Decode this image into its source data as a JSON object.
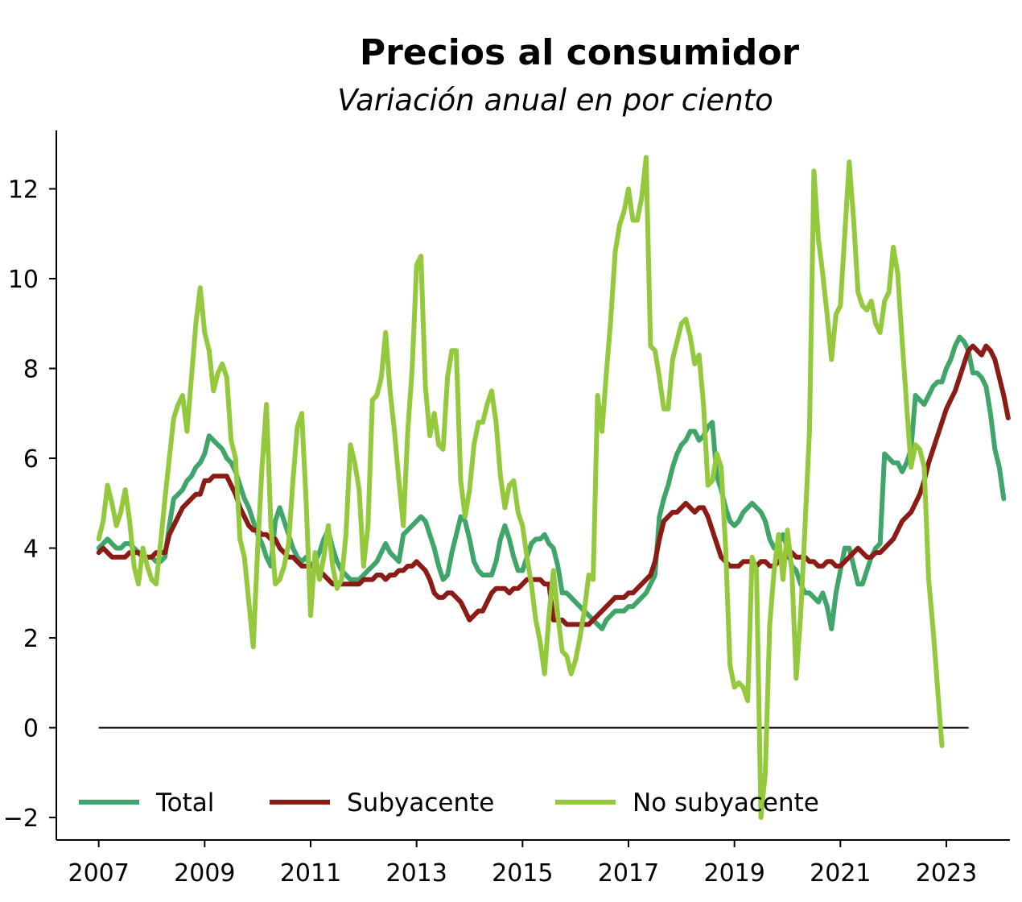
{
  "chart_data": {
    "type": "line",
    "title": "Precios al consumidor",
    "subtitle": "Variación anual en por ciento",
    "xlabel": "",
    "ylabel": "",
    "xlim": [
      2006.2,
      2024.2
    ],
    "ylim": [
      -2.5,
      13.3
    ],
    "x_ticks": [
      2007,
      2009,
      2011,
      2013,
      2015,
      2017,
      2019,
      2021,
      2023
    ],
    "x_tick_labels": [
      "2007",
      "2009",
      "2011",
      "2013",
      "2015",
      "2017",
      "2019",
      "2021",
      "2023"
    ],
    "y_ticks": [
      -2,
      0,
      2,
      4,
      6,
      8,
      10,
      12
    ],
    "y_tick_labels": [
      "−2",
      "0",
      "2",
      "4",
      "6",
      "8",
      "10",
      "12"
    ],
    "zero_line": {
      "y": 0,
      "x_start": 2007.0,
      "x_end": 2023.42
    },
    "grid": false,
    "legend_placement": "bottom-left",
    "x_start": 2007.0,
    "x_step": 0.08333,
    "series": [
      {
        "name": "Total",
        "color": "#3fa56a",
        "values": [
          4.0,
          4.1,
          4.2,
          4.1,
          4.0,
          4.0,
          4.1,
          4.1,
          4.0,
          3.9,
          3.8,
          3.8,
          3.8,
          3.7,
          3.7,
          3.8,
          4.5,
          5.1,
          5.2,
          5.3,
          5.5,
          5.6,
          5.8,
          5.9,
          6.1,
          6.5,
          6.4,
          6.3,
          6.2,
          6.0,
          5.9,
          5.7,
          5.4,
          5.1,
          4.9,
          4.6,
          4.3,
          4.1,
          3.8,
          3.6,
          4.6,
          4.9,
          4.6,
          4.3,
          4.0,
          3.8,
          3.7,
          3.8,
          3.6,
          3.7,
          3.9,
          4.2,
          4.4,
          4.0,
          3.7,
          3.5,
          3.4,
          3.3,
          3.3,
          3.3,
          3.4,
          3.5,
          3.6,
          3.7,
          3.9,
          4.1,
          3.9,
          3.8,
          3.7,
          4.3,
          4.4,
          4.5,
          4.6,
          4.7,
          4.6,
          4.3,
          4.0,
          3.6,
          3.3,
          3.4,
          3.9,
          4.3,
          4.7,
          4.6,
          4.2,
          3.7,
          3.5,
          3.4,
          3.4,
          3.4,
          3.7,
          4.2,
          4.5,
          4.2,
          3.8,
          3.5,
          3.5,
          3.8,
          4.1,
          4.2,
          4.2,
          4.3,
          4.1,
          4.0,
          3.6,
          3.0,
          3.0,
          2.9,
          2.8,
          2.7,
          2.6,
          2.5,
          2.4,
          2.3,
          2.2,
          2.4,
          2.5,
          2.6,
          2.6,
          2.6,
          2.7,
          2.7,
          2.8,
          2.9,
          3.0,
          3.2,
          3.4,
          4.7,
          5.1,
          5.4,
          5.8,
          6.1,
          6.3,
          6.4,
          6.6,
          6.6,
          6.4,
          6.5,
          6.7,
          6.8,
          5.6,
          5.3,
          4.9,
          4.6,
          4.5,
          4.6,
          4.8,
          4.9,
          5.0,
          4.9,
          4.8,
          4.6,
          4.2,
          4.0,
          4.1,
          4.3,
          4.0,
          3.6,
          3.5,
          3.2,
          3.0,
          3.0,
          2.9,
          2.8,
          3.0,
          2.7,
          2.2,
          3.0,
          3.5,
          4.0,
          4.0,
          3.6,
          3.2,
          3.2,
          3.5,
          3.8,
          4.0,
          4.1,
          6.1,
          6.0,
          5.9,
          5.9,
          5.7,
          5.9,
          6.2,
          7.4,
          7.3,
          7.2,
          7.4,
          7.6,
          7.7,
          7.7,
          8.0,
          8.2,
          8.5,
          8.7,
          8.6,
          8.4,
          7.9,
          7.9,
          7.8,
          7.6,
          7.0,
          6.2,
          5.8,
          5.1
        ]
      },
      {
        "name": "Subyacente",
        "color": "#8b1c15",
        "values": [
          3.9,
          4.0,
          3.9,
          3.8,
          3.8,
          3.8,
          3.8,
          3.9,
          3.9,
          3.9,
          3.8,
          3.8,
          3.8,
          3.9,
          3.9,
          3.9,
          4.3,
          4.5,
          4.7,
          4.9,
          5.0,
          5.1,
          5.2,
          5.2,
          5.5,
          5.5,
          5.6,
          5.6,
          5.6,
          5.6,
          5.4,
          5.2,
          4.9,
          4.7,
          4.5,
          4.4,
          4.4,
          4.3,
          4.3,
          4.2,
          4.2,
          4.0,
          3.9,
          3.8,
          3.8,
          3.7,
          3.6,
          3.6,
          3.6,
          3.6,
          3.5,
          3.4,
          3.3,
          3.2,
          3.2,
          3.2,
          3.2,
          3.2,
          3.2,
          3.2,
          3.3,
          3.3,
          3.3,
          3.4,
          3.4,
          3.3,
          3.4,
          3.4,
          3.5,
          3.5,
          3.6,
          3.6,
          3.7,
          3.6,
          3.5,
          3.3,
          3.0,
          2.9,
          2.9,
          3.0,
          3.0,
          2.9,
          2.8,
          2.6,
          2.4,
          2.5,
          2.6,
          2.6,
          2.8,
          3.0,
          3.1,
          3.1,
          3.1,
          3.0,
          3.1,
          3.1,
          3.2,
          3.3,
          3.3,
          3.3,
          3.3,
          3.2,
          3.2,
          2.4,
          2.4,
          2.4,
          2.3,
          2.3,
          2.3,
          2.3,
          2.3,
          2.3,
          2.4,
          2.5,
          2.6,
          2.7,
          2.8,
          2.9,
          2.9,
          2.9,
          3.0,
          3.0,
          3.1,
          3.2,
          3.3,
          3.4,
          3.7,
          4.2,
          4.6,
          4.7,
          4.8,
          4.8,
          4.9,
          5.0,
          4.9,
          4.8,
          4.9,
          4.9,
          4.7,
          4.4,
          4.1,
          3.8,
          3.7,
          3.6,
          3.6,
          3.6,
          3.7,
          3.7,
          3.7,
          3.6,
          3.7,
          3.7,
          3.6,
          3.6,
          3.7,
          3.8,
          3.8,
          3.9,
          3.8,
          3.8,
          3.8,
          3.7,
          3.7,
          3.6,
          3.6,
          3.7,
          3.7,
          3.6,
          3.6,
          3.7,
          3.8,
          3.9,
          4.0,
          3.9,
          3.8,
          3.8,
          3.9,
          3.9,
          4.0,
          4.1,
          4.2,
          4.4,
          4.6,
          4.7,
          4.8,
          5.0,
          5.2,
          5.5,
          5.9,
          6.2,
          6.5,
          6.8,
          7.1,
          7.3,
          7.5,
          7.8,
          8.1,
          8.4,
          8.5,
          8.4,
          8.3,
          8.5,
          8.4,
          8.2,
          7.8,
          7.4,
          6.9
        ]
      },
      {
        "name": "No subyacente",
        "color": "#94c93d",
        "values": [
          4.2,
          4.6,
          5.4,
          5.0,
          4.5,
          4.8,
          5.3,
          4.6,
          3.6,
          3.2,
          4.0,
          3.6,
          3.3,
          3.2,
          4.1,
          5.1,
          6.0,
          6.9,
          7.2,
          7.4,
          6.6,
          7.8,
          9.0,
          9.8,
          8.8,
          8.4,
          7.5,
          7.9,
          8.1,
          7.8,
          6.4,
          6.0,
          4.2,
          3.8,
          2.8,
          1.8,
          4.0,
          5.8,
          7.2,
          4.5,
          3.2,
          3.3,
          3.6,
          4.1,
          5.5,
          6.7,
          7.0,
          5.0,
          2.5,
          3.9,
          3.3,
          3.8,
          4.5,
          3.6,
          3.1,
          3.3,
          4.3,
          6.3,
          5.9,
          5.3,
          3.6,
          4.5,
          7.3,
          7.4,
          7.8,
          8.8,
          7.5,
          6.6,
          5.5,
          4.5,
          6.6,
          8.0,
          10.3,
          10.5,
          7.6,
          6.5,
          7.0,
          6.3,
          6.2,
          7.8,
          8.4,
          8.4,
          5.5,
          4.7,
          5.3,
          6.3,
          6.8,
          6.8,
          7.2,
          7.5,
          6.8,
          5.6,
          4.9,
          5.4,
          5.5,
          4.8,
          4.5,
          3.8,
          3.2,
          2.4,
          1.9,
          1.2,
          2.5,
          3.5,
          2.5,
          1.7,
          1.6,
          1.2,
          1.5,
          2.0,
          2.6,
          3.4,
          3.3,
          7.4,
          6.6,
          7.9,
          9.1,
          10.6,
          11.2,
          11.5,
          12.0,
          11.3,
          11.3,
          11.8,
          12.7,
          8.5,
          8.4,
          7.8,
          7.1,
          7.1,
          8.2,
          8.6,
          9.0,
          9.1,
          8.7,
          8.1,
          8.3,
          7.2,
          5.4,
          5.5,
          6.1,
          5.8,
          4.0,
          1.4,
          0.9,
          1.0,
          0.9,
          0.6,
          3.8,
          3.5,
          -2.0,
          -1.0,
          2.3,
          3.5,
          4.3,
          3.3,
          4.4,
          3.5,
          1.1,
          2.5,
          4.5,
          6.6,
          12.4,
          10.9,
          10.1,
          9.2,
          8.2,
          9.2,
          9.4,
          11.0,
          12.6,
          11.3,
          9.7,
          9.4,
          9.3,
          9.5,
          9.0,
          8.8,
          9.5,
          9.7,
          10.7,
          10.1,
          8.6,
          7.2,
          5.8,
          6.3,
          6.2,
          5.8,
          3.3,
          2.2,
          0.9,
          -0.4
        ]
      }
    ]
  }
}
